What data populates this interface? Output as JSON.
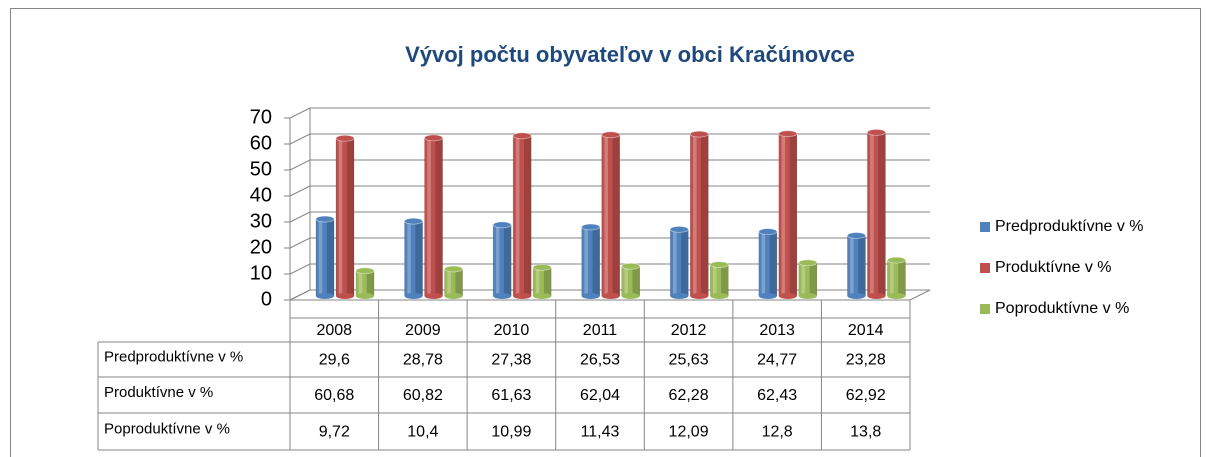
{
  "chart_data": {
    "type": "bar",
    "title": "Vývoj počtu obyvateľov v obci Kračúnovce",
    "categories": [
      "2008",
      "2009",
      "2010",
      "2011",
      "2012",
      "2013",
      "2014"
    ],
    "series": [
      {
        "name": "Predproduktívne v %",
        "color": "#4f81bd",
        "values": [
          29.6,
          28.78,
          27.38,
          26.53,
          25.63,
          24.77,
          23.28
        ],
        "value_labels": [
          "29,6",
          "28,78",
          "27,38",
          "26,53",
          "25,63",
          "24,77",
          "23,28"
        ]
      },
      {
        "name": "Produktívne v %",
        "color": "#c0504d",
        "values": [
          60.68,
          60.82,
          61.63,
          62.04,
          62.28,
          62.43,
          62.92
        ],
        "value_labels": [
          "60,68",
          "60,82",
          "61,63",
          "62,04",
          "62,28",
          "62,43",
          "62,92"
        ]
      },
      {
        "name": "Poproduktívne v %",
        "color": "#9bbb59",
        "values": [
          9.72,
          10.4,
          10.99,
          11.43,
          12.09,
          12.8,
          13.8
        ],
        "value_labels": [
          "9,72",
          "10,4",
          "10,99",
          "11,43",
          "12,09",
          "12,8",
          "13,8"
        ]
      }
    ],
    "ylim": [
      0,
      70
    ],
    "yticks": [
      0,
      10,
      20,
      30,
      40,
      50,
      60,
      70
    ],
    "grid": true,
    "legend": "right",
    "data_table": true
  }
}
